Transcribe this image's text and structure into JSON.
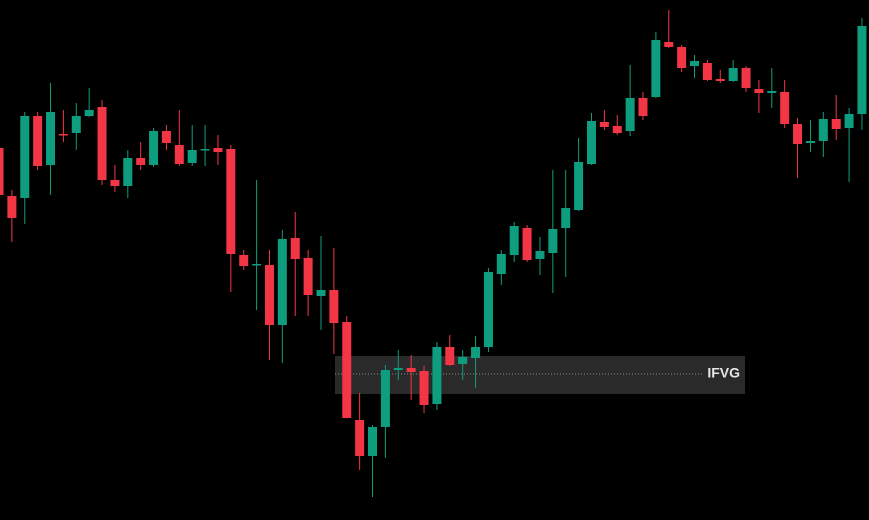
{
  "chart_data": {
    "type": "candlestick",
    "ylim": [
      0,
      520
    ],
    "up_color": "#0f9d7f",
    "down_color": "#f23645",
    "open": [
      372,
      324,
      322,
      404,
      355,
      386,
      387,
      404,
      413,
      340,
      334,
      362,
      355,
      389,
      375,
      357,
      370,
      372,
      371,
      265,
      255,
      255,
      195,
      282,
      262,
      224,
      230,
      198,
      100,
      64,
      93,
      150,
      152,
      149,
      116,
      173,
      156,
      162,
      173,
      246,
      265,
      292,
      261,
      267,
      292,
      310,
      356,
      398,
      394,
      389,
      422,
      423,
      478,
      473,
      454,
      457,
      441,
      439,
      452,
      431,
      427,
      428,
      396,
      377,
      379,
      401,
      392,
      406
    ],
    "high": [
      380,
      330,
      408,
      408,
      437,
      410,
      417,
      432,
      420,
      355,
      370,
      378,
      392,
      395,
      410,
      395,
      395,
      385,
      375,
      270,
      340,
      270,
      290,
      308,
      270,
      284,
      272,
      204,
      127,
      95,
      155,
      170,
      165,
      154,
      178,
      185,
      170,
      184,
      252,
      270,
      298,
      295,
      283,
      350,
      350,
      382,
      407,
      410,
      405,
      455,
      428,
      488,
      510,
      475,
      465,
      460,
      450,
      460,
      454,
      440,
      452,
      440,
      402,
      400,
      408,
      425,
      412,
      502
    ],
    "low": [
      320,
      278,
      296,
      350,
      325,
      378,
      370,
      403,
      335,
      328,
      322,
      350,
      353,
      370,
      354,
      354,
      354,
      355,
      228,
      250,
      210,
      160,
      157,
      204,
      204,
      190,
      166,
      102,
      50,
      23,
      62,
      140,
      120,
      107,
      110,
      154,
      140,
      132,
      168,
      235,
      258,
      258,
      245,
      227,
      243,
      309,
      355,
      390,
      385,
      384,
      400,
      422,
      472,
      448,
      442,
      439,
      437,
      438,
      428,
      407,
      412,
      392,
      342,
      368,
      363,
      380,
      338,
      390
    ],
    "close": [
      325,
      302,
      404,
      354,
      408,
      385,
      404,
      410,
      340,
      334,
      362,
      355,
      389,
      377,
      356,
      370,
      371,
      368,
      266,
      254,
      256,
      195,
      281,
      261,
      225,
      230,
      197,
      102,
      64,
      93,
      150,
      152,
      148,
      115,
      173,
      155,
      163,
      173,
      248,
      266,
      294,
      260,
      269,
      291,
      312,
      358,
      399,
      393,
      387,
      422,
      404,
      480,
      473,
      452,
      459,
      440,
      439,
      452,
      432,
      427,
      429,
      396,
      376,
      379,
      401,
      391,
      406,
      494
    ],
    "zone": {
      "label": "IFVG",
      "top": 164,
      "bottom": 126,
      "level": 146,
      "color": "#2a2a2a"
    }
  }
}
